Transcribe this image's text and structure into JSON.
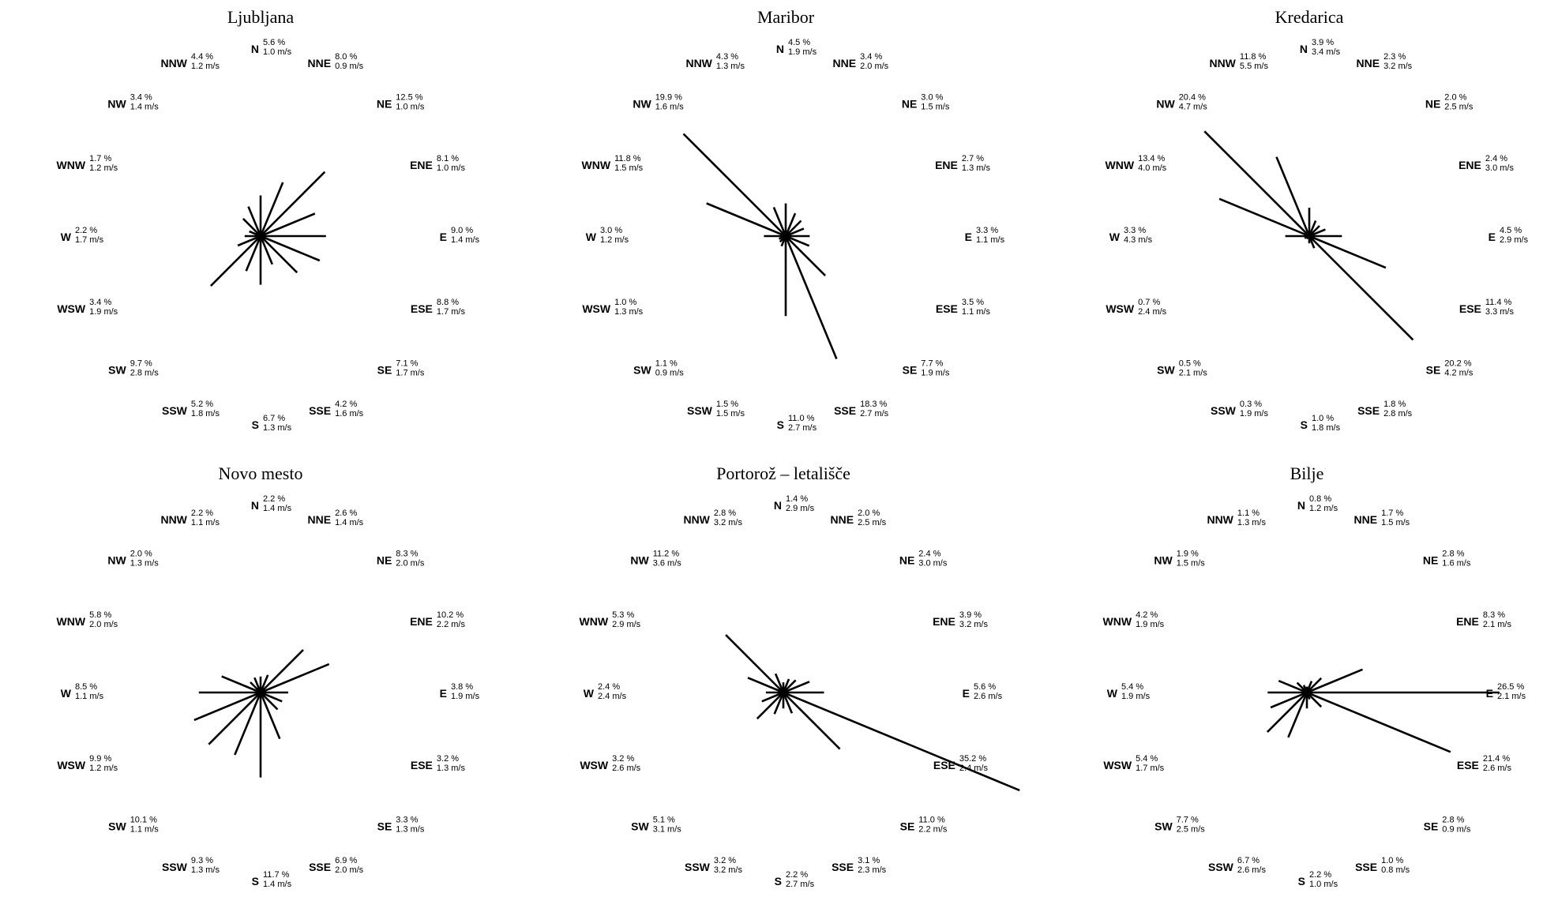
{
  "chart_data": [
    {
      "type": "wind-rose",
      "title": "Ljubljana",
      "directions": [
        "N",
        "NNE",
        "NE",
        "ENE",
        "E",
        "ESE",
        "SE",
        "SSE",
        "S",
        "SSW",
        "SW",
        "WSW",
        "W",
        "WNW",
        "NW",
        "NNW"
      ],
      "frequency": [
        "5.6 %",
        "8.0 %",
        "12.5 %",
        "8.1 %",
        "9.0 %",
        "8.8 %",
        "7.1 %",
        "4.2 %",
        "6.7 %",
        "5.2 %",
        "9.7 %",
        "3.4 %",
        "2.2 %",
        "1.7 %",
        "3.4 %",
        "4.4 %"
      ],
      "speed": [
        "1.0 m/s",
        "0.9 m/s",
        "1.0 m/s",
        "1.0 m/s",
        "1.4 m/s",
        "1.7 m/s",
        "1.7 m/s",
        "1.6 m/s",
        "1.3 m/s",
        "1.8 m/s",
        "2.8 m/s",
        "1.9 m/s",
        "1.7 m/s",
        "1.2 m/s",
        "1.4 m/s",
        "1.2 m/s"
      ],
      "values": [
        5.6,
        8.0,
        12.5,
        8.1,
        9.0,
        8.8,
        7.1,
        4.2,
        6.7,
        5.2,
        9.7,
        3.4,
        2.2,
        1.7,
        3.4,
        4.4
      ]
    },
    {
      "type": "wind-rose",
      "title": "Maribor",
      "directions": [
        "N",
        "NNE",
        "NE",
        "ENE",
        "E",
        "ESE",
        "SE",
        "SSE",
        "S",
        "SSW",
        "SW",
        "WSW",
        "W",
        "WNW",
        "NW",
        "NNW"
      ],
      "frequency": [
        "4.5 %",
        "3.4 %",
        "3.0 %",
        "2.7 %",
        "3.3 %",
        "3.5 %",
        "7.7 %",
        "18.3 %",
        "11.0 %",
        "1.5 %",
        "1.1 %",
        "1.0 %",
        "3.0 %",
        "11.8 %",
        "19.9 %",
        "4.3 %"
      ],
      "speed": [
        "1.9 m/s",
        "2.0 m/s",
        "1.5 m/s",
        "1.3 m/s",
        "1.1 m/s",
        "1.1 m/s",
        "1.9 m/s",
        "2.7 m/s",
        "2.7 m/s",
        "1.5 m/s",
        "0.9 m/s",
        "1.3 m/s",
        "1.2 m/s",
        "1.5 m/s",
        "1.6 m/s",
        "1.3 m/s"
      ],
      "values": [
        4.5,
        3.4,
        3.0,
        2.7,
        3.3,
        3.5,
        7.7,
        18.3,
        11.0,
        1.5,
        1.1,
        1.0,
        3.0,
        11.8,
        19.9,
        4.3
      ]
    },
    {
      "type": "wind-rose",
      "title": "Kredarica",
      "directions": [
        "N",
        "NNE",
        "NE",
        "ENE",
        "E",
        "ESE",
        "SE",
        "SSE",
        "S",
        "SSW",
        "SW",
        "WSW",
        "W",
        "WNW",
        "NW",
        "NNW"
      ],
      "frequency": [
        "3.9 %",
        "2.3 %",
        "2.0 %",
        "2.4 %",
        "4.5 %",
        "11.4 %",
        "20.2 %",
        "1.8 %",
        "1.0 %",
        "0.3 %",
        "0.5 %",
        "0.7 %",
        "3.3 %",
        "13.4 %",
        "20.4 %",
        "11.8 %"
      ],
      "speed": [
        "3.4 m/s",
        "3.2 m/s",
        "2.5 m/s",
        "3.0 m/s",
        "2.9 m/s",
        "3.3 m/s",
        "4.2 m/s",
        "2.8 m/s",
        "1.8 m/s",
        "1.9 m/s",
        "2.1 m/s",
        "2.4 m/s",
        "4.3 m/s",
        "4.0 m/s",
        "4.7 m/s",
        "5.5 m/s"
      ],
      "values": [
        3.9,
        2.3,
        2.0,
        2.4,
        4.5,
        11.4,
        20.2,
        1.8,
        1.0,
        0.3,
        0.5,
        0.7,
        3.3,
        13.4,
        20.4,
        11.8
      ]
    },
    {
      "type": "wind-rose",
      "title": "Novo mesto",
      "directions": [
        "N",
        "NNE",
        "NE",
        "ENE",
        "E",
        "ESE",
        "SE",
        "SSE",
        "S",
        "SSW",
        "SW",
        "WSW",
        "W",
        "WNW",
        "NW",
        "NNW"
      ],
      "frequency": [
        "2.2 %",
        "2.6 %",
        "8.3 %",
        "10.2 %",
        "3.8 %",
        "3.2 %",
        "3.3 %",
        "6.9 %",
        "11.7 %",
        "9.3 %",
        "10.1 %",
        "9.9 %",
        "8.5 %",
        "5.8 %",
        "2.0 %",
        "2.2 %"
      ],
      "speed": [
        "1.4 m/s",
        "1.4 m/s",
        "2.0 m/s",
        "2.2 m/s",
        "1.9 m/s",
        "1.3 m/s",
        "1.3 m/s",
        "2.0 m/s",
        "1.4 m/s",
        "1.3 m/s",
        "1.1 m/s",
        "1.2 m/s",
        "1.1 m/s",
        "2.0 m/s",
        "1.3 m/s",
        "1.1 m/s"
      ],
      "values": [
        2.2,
        2.6,
        8.3,
        10.2,
        3.8,
        3.2,
        3.3,
        6.9,
        11.7,
        9.3,
        10.1,
        9.9,
        8.5,
        5.8,
        2.0,
        2.2
      ]
    },
    {
      "type": "wind-rose",
      "title": "Portorož – letališče",
      "directions": [
        "N",
        "NNE",
        "NE",
        "ENE",
        "E",
        "ESE",
        "SE",
        "SSE",
        "S",
        "SSW",
        "SW",
        "WSW",
        "W",
        "WNW",
        "NW",
        "NNW"
      ],
      "frequency": [
        "1.4 %",
        "2.0 %",
        "2.4 %",
        "3.9 %",
        "5.6 %",
        "35.2 %",
        "11.0 %",
        "3.1 %",
        "2.2 %",
        "3.2 %",
        "5.1 %",
        "3.2 %",
        "2.4 %",
        "5.3 %",
        "11.2 %",
        "2.8 %"
      ],
      "speed": [
        "2.9 m/s",
        "2.5 m/s",
        "3.0 m/s",
        "3.2 m/s",
        "2.6 m/s",
        "2.4 m/s",
        "2.2 m/s",
        "2.3 m/s",
        "2.7 m/s",
        "3.2 m/s",
        "3.1 m/s",
        "2.6 m/s",
        "2.4 m/s",
        "2.9 m/s",
        "3.6 m/s",
        "3.2 m/s"
      ],
      "values": [
        1.4,
        2.0,
        2.4,
        3.9,
        5.6,
        35.2,
        11.0,
        3.1,
        2.2,
        3.2,
        5.1,
        3.2,
        2.4,
        5.3,
        11.2,
        2.8
      ]
    },
    {
      "type": "wind-rose",
      "title": "Bilje",
      "directions": [
        "N",
        "NNE",
        "NE",
        "ENE",
        "E",
        "ESE",
        "SE",
        "SSE",
        "S",
        "SSW",
        "SW",
        "WSW",
        "W",
        "WNW",
        "NW",
        "NNW"
      ],
      "frequency": [
        "0.8 %",
        "1.7 %",
        "2.8 %",
        "8.3 %",
        "26.5 %",
        "21.4 %",
        "2.8 %",
        "1.0 %",
        "2.2 %",
        "6.7 %",
        "7.7 %",
        "5.4 %",
        "5.4 %",
        "4.2 %",
        "1.9 %",
        "1.1 %"
      ],
      "speed": [
        "1.2 m/s",
        "1.5 m/s",
        "1.6 m/s",
        "2.1 m/s",
        "2.1 m/s",
        "2.6 m/s",
        "0.9 m/s",
        "0.8 m/s",
        "1.0 m/s",
        "2.6 m/s",
        "2.5 m/s",
        "1.7 m/s",
        "1.9 m/s",
        "1.9 m/s",
        "1.5 m/s",
        "1.3 m/s"
      ],
      "values": [
        0.8,
        1.7,
        2.8,
        8.3,
        26.5,
        21.4,
        2.8,
        1.0,
        2.2,
        6.7,
        7.7,
        5.4,
        5.4,
        4.2,
        1.9,
        1.1
      ]
    }
  ]
}
